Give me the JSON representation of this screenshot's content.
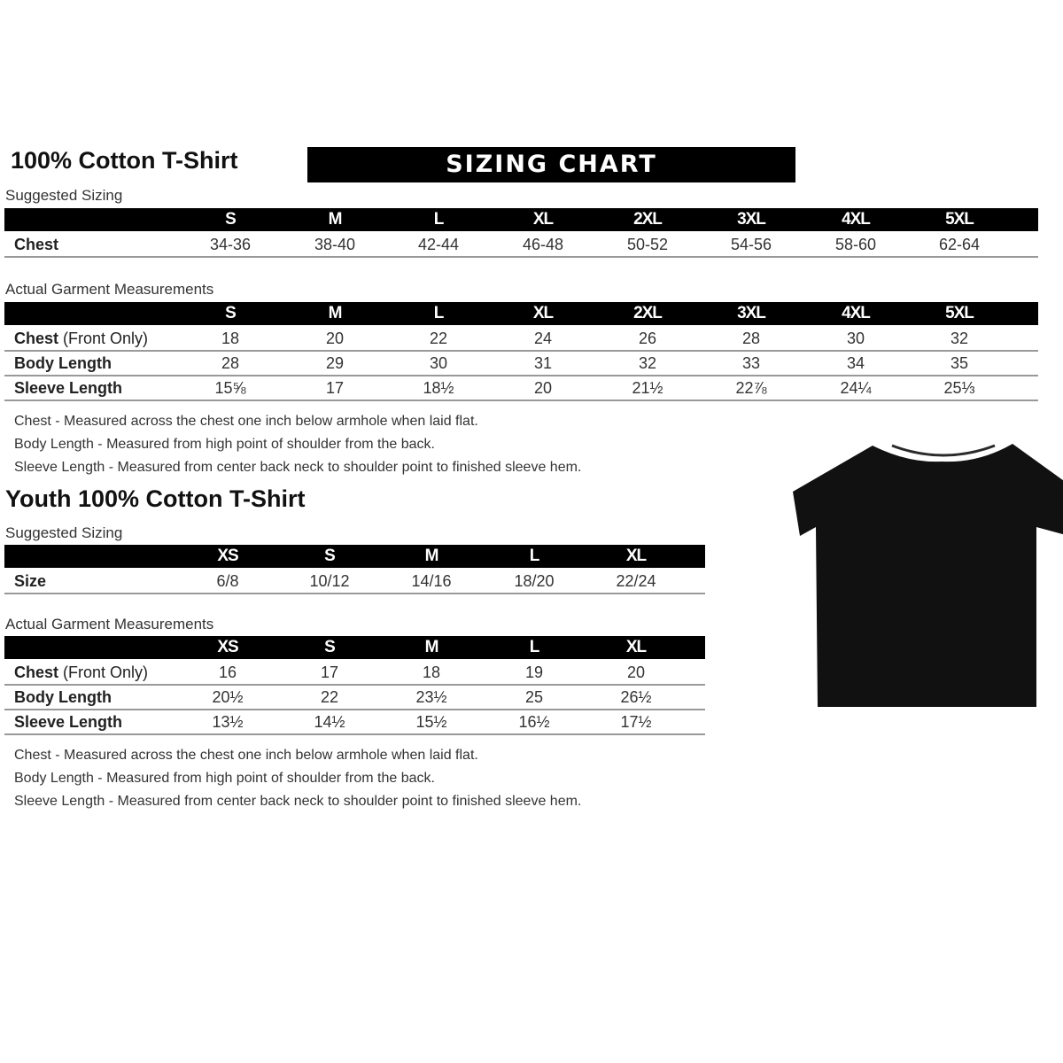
{
  "adult": {
    "title": "100% Cotton T-Shirt",
    "banner": "SIZING CHART",
    "suggested": {
      "label": "Suggested Sizing",
      "sizes": [
        "S",
        "M",
        "L",
        "XL",
        "2XL",
        "3XL",
        "4XL",
        "5XL"
      ],
      "rows": [
        {
          "label": "Chest",
          "label_extra": "",
          "values": [
            "34-36",
            "38-40",
            "42-44",
            "46-48",
            "50-52",
            "54-56",
            "58-60",
            "62-64"
          ]
        }
      ]
    },
    "actual": {
      "label": "Actual Garment Measurements",
      "sizes": [
        "S",
        "M",
        "L",
        "XL",
        "2XL",
        "3XL",
        "4XL",
        "5XL"
      ],
      "rows": [
        {
          "label": "Chest",
          "label_extra": " (Front Only)",
          "values": [
            "18",
            "20",
            "22",
            "24",
            "26",
            "28",
            "30",
            "32"
          ]
        },
        {
          "label": "Body Length",
          "label_extra": "",
          "values": [
            "28",
            "29",
            "30",
            "31",
            "32",
            "33",
            "34",
            "35"
          ]
        },
        {
          "label": "Sleeve Length",
          "label_extra": "",
          "values": [
            "15⅝",
            "17",
            "18½",
            "20",
            "21½",
            "22⅞",
            "24¼",
            "25⅓"
          ]
        }
      ]
    },
    "notes": [
      "Chest - Measured across the chest one inch below armhole when laid flat.",
      "Body Length - Measured from high point of shoulder from the back.",
      "Sleeve Length - Measured from center back neck to shoulder point to finished sleeve hem."
    ]
  },
  "youth": {
    "title": "Youth 100% Cotton T-Shirt",
    "suggested": {
      "label": "Suggested Sizing",
      "sizes": [
        "XS",
        "S",
        "M",
        "L",
        "XL"
      ],
      "rows": [
        {
          "label": "Size",
          "label_extra": "",
          "values": [
            "6/8",
            "10/12",
            "14/16",
            "18/20",
            "22/24"
          ]
        }
      ]
    },
    "actual": {
      "label": "Actual Garment Measurements",
      "sizes": [
        "XS",
        "S",
        "M",
        "L",
        "XL"
      ],
      "rows": [
        {
          "label": "Chest",
          "label_extra": " (Front Only)",
          "values": [
            "16",
            "17",
            "18",
            "19",
            "20"
          ]
        },
        {
          "label": "Body Length",
          "label_extra": "",
          "values": [
            "20½",
            "22",
            "23½",
            "25",
            "26½"
          ]
        },
        {
          "label": "Sleeve Length",
          "label_extra": "",
          "values": [
            "13½",
            "14½",
            "15½",
            "16½",
            "17½"
          ]
        }
      ]
    },
    "notes": [
      "Chest - Measured across the chest one inch below armhole when laid flat.",
      "Body Length - Measured from high point of shoulder from the back.",
      "Sleeve Length - Measured from center back neck to shoulder point to finished sleeve hem."
    ]
  },
  "image": {
    "icon": "black-tshirt",
    "color": "#111111"
  }
}
